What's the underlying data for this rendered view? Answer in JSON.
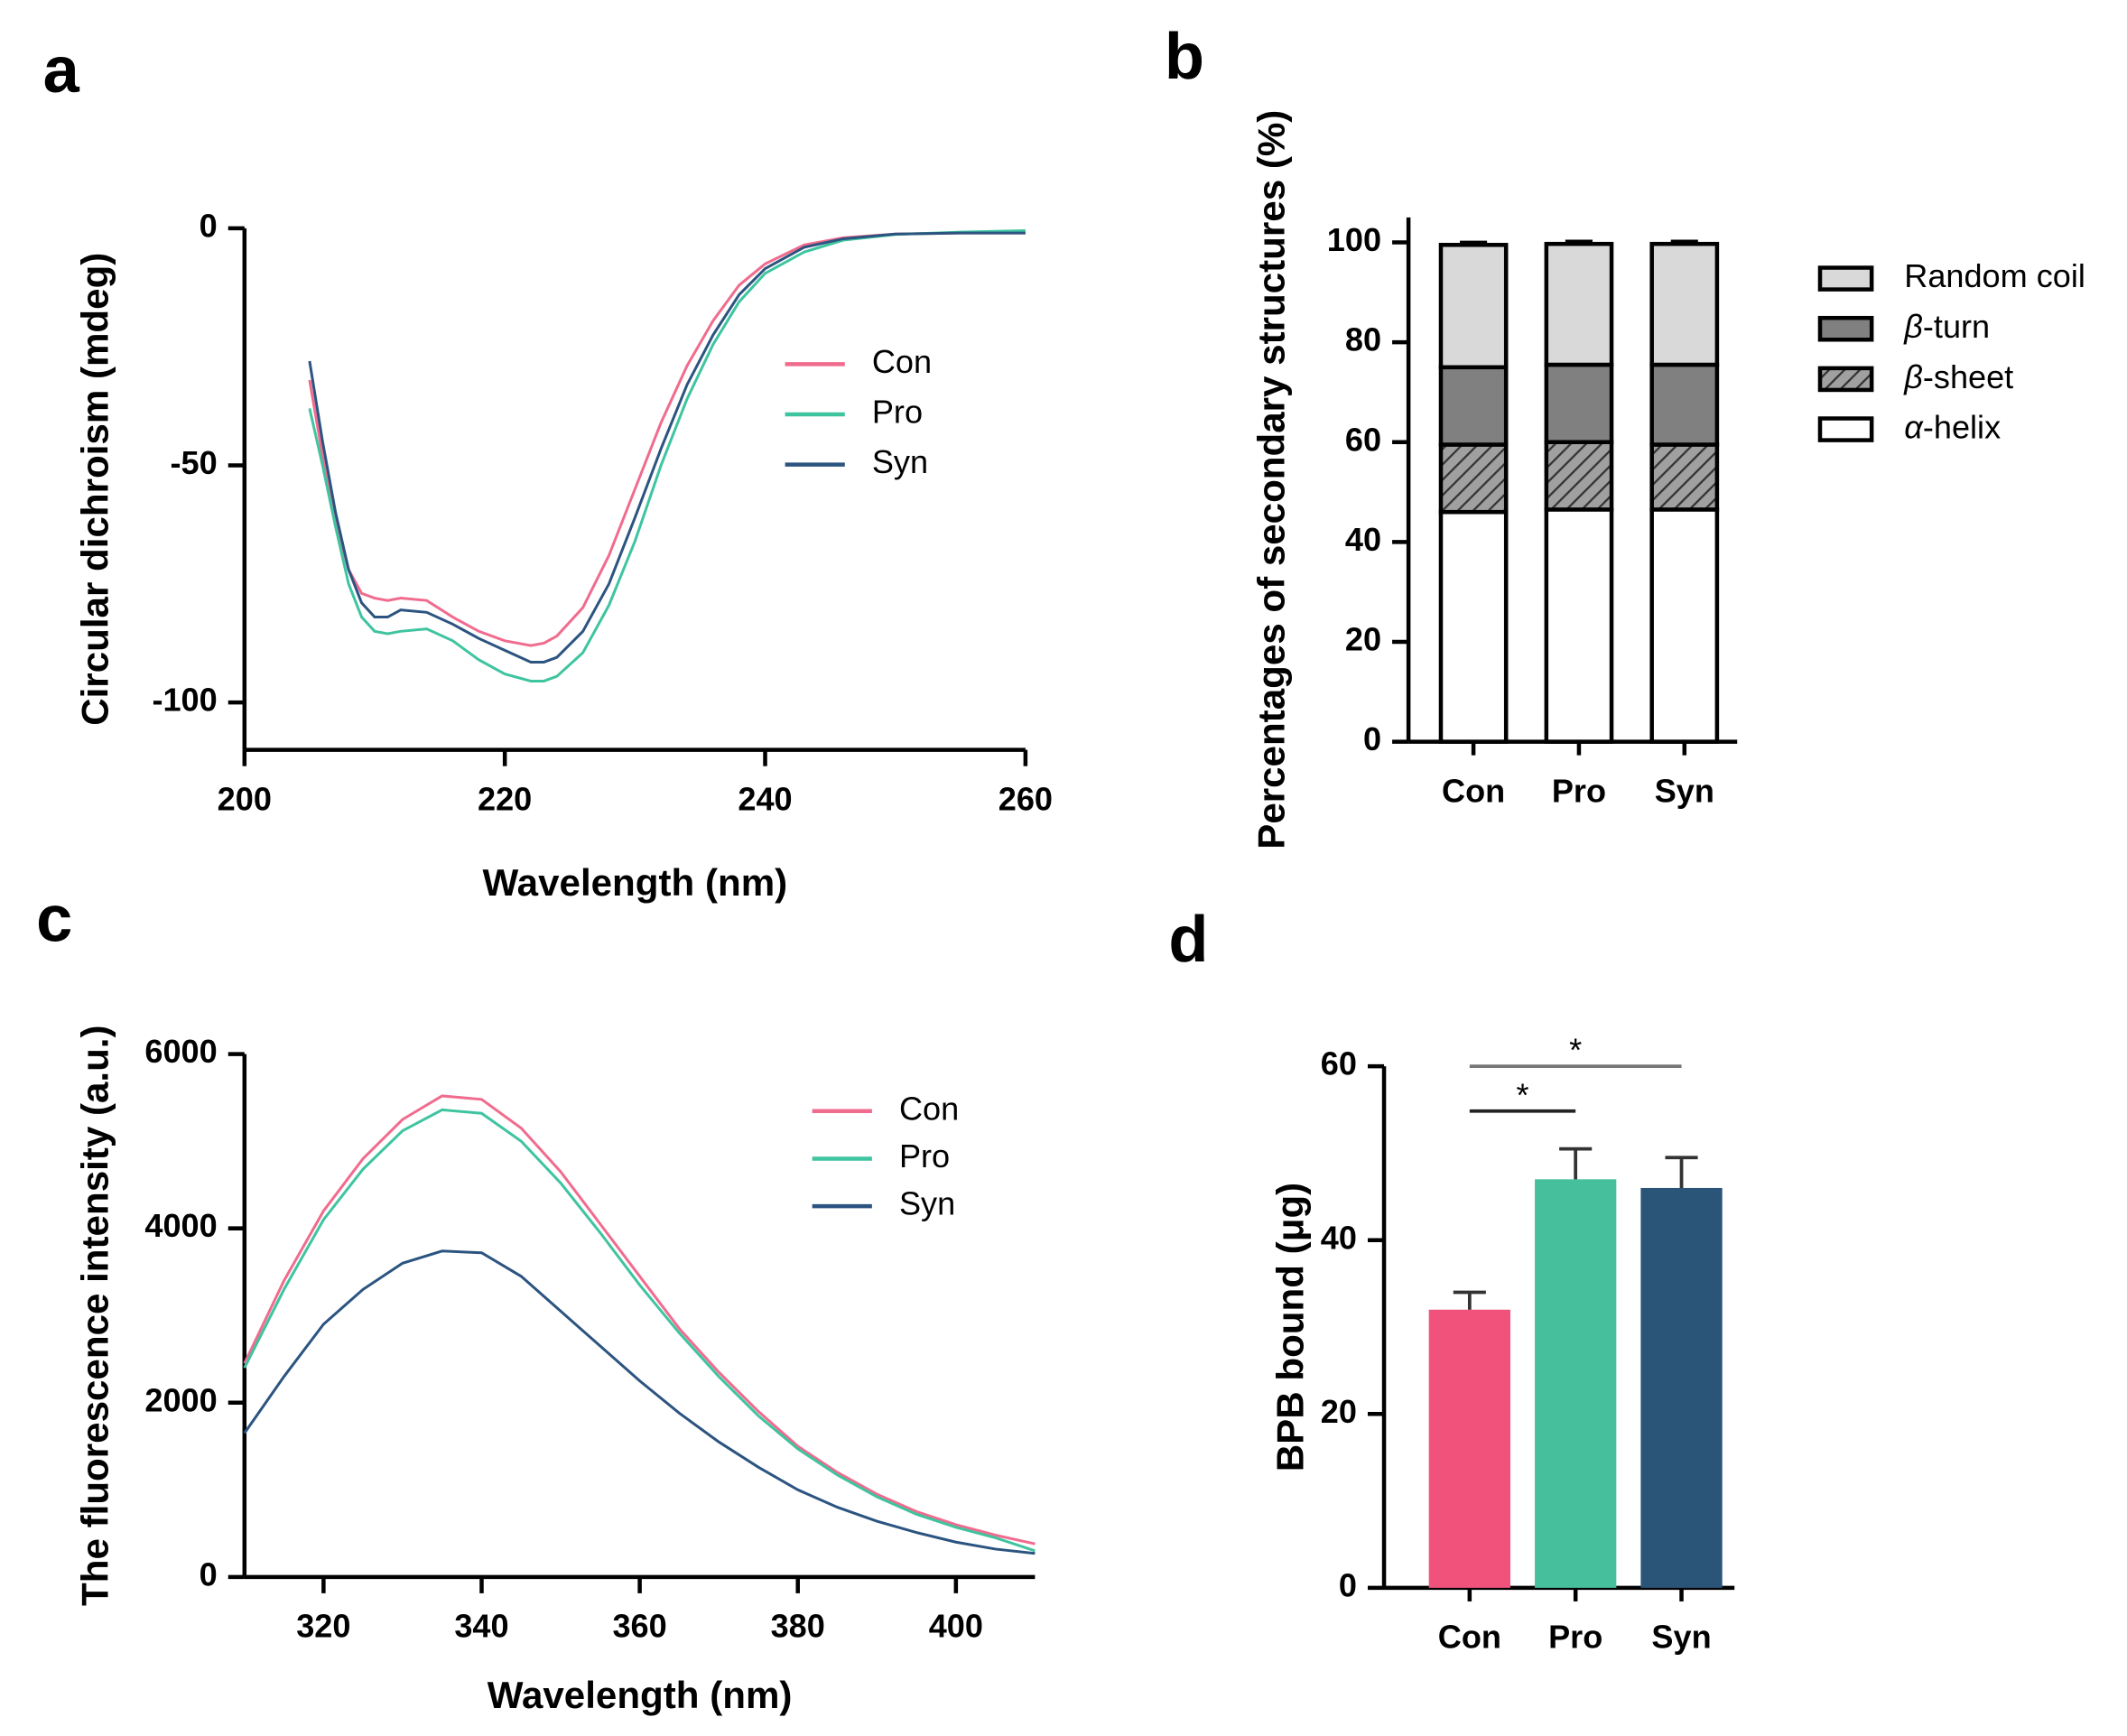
{
  "chart_data": [
    {
      "panel": "a",
      "type": "line",
      "xlabel": "Wavelength (nm)",
      "ylabel": "Circular dichroism (mdeg)",
      "x": [
        205,
        206,
        207,
        208,
        209,
        210,
        211,
        212,
        214,
        216,
        218,
        220,
        222,
        223,
        224,
        226,
        228,
        230,
        232,
        234,
        236,
        238,
        240,
        243,
        246,
        250,
        255,
        260
      ],
      "xlim": [
        200,
        260
      ],
      "xticks": [
        200,
        220,
        240,
        260
      ],
      "ylim": [
        -110,
        0
      ],
      "yticks": [
        0,
        -50,
        -100
      ],
      "legend": "right",
      "series": [
        {
          "name": "Con",
          "color": "#f06c8e",
          "values": [
            -32,
            -48,
            -62,
            -72,
            -77,
            -78,
            -78.5,
            -78,
            -78.5,
            -82,
            -85,
            -87,
            -88,
            -87.5,
            -86,
            -80,
            -69,
            -55,
            -41,
            -29,
            -19.5,
            -12,
            -7.5,
            -3.5,
            -2,
            -1.2,
            -1,
            -1
          ]
        },
        {
          "name": "Pro",
          "color": "#3fc4a0",
          "values": [
            -38,
            -50,
            -63,
            -75,
            -82,
            -85,
            -85.5,
            -85,
            -84.5,
            -87,
            -91,
            -94,
            -95.5,
            -95.5,
            -94.5,
            -89.5,
            -79.5,
            -66,
            -50,
            -36,
            -24.5,
            -15.5,
            -9.5,
            -5,
            -2.5,
            -1.3,
            -0.8,
            -0.5
          ]
        },
        {
          "name": "Syn",
          "color": "#2c5480",
          "values": [
            -28,
            -45,
            -60,
            -72,
            -79,
            -82,
            -82,
            -80.5,
            -81,
            -83.5,
            -86.5,
            -89,
            -91.5,
            -91.5,
            -90.5,
            -85,
            -75,
            -61,
            -46.5,
            -33,
            -22.5,
            -14,
            -8.5,
            -4,
            -2.2,
            -1.2,
            -1,
            -1
          ]
        }
      ]
    },
    {
      "panel": "b",
      "type": "stacked_bar",
      "ylabel": "Percentages of secondary structures (%)",
      "categories": [
        "Con",
        "Pro",
        "Syn"
      ],
      "ylim": [
        0,
        105
      ],
      "yticks": [
        0,
        20,
        40,
        60,
        80,
        100
      ],
      "legend": "right",
      "series": [
        {
          "name": "α-helix",
          "color": "#ffffff",
          "values": [
            46,
            46.5,
            46.5
          ],
          "errors": [
            0.5,
            0.5,
            0.5
          ]
        },
        {
          "name": "β-sheet",
          "color": "#9a9a9a",
          "hatch": true,
          "values": [
            13.5,
            13.5,
            13
          ],
          "errors": [
            0.5,
            0.5,
            0.5
          ]
        },
        {
          "name": "β-turn",
          "color": "#808080",
          "values": [
            15.5,
            15.5,
            16
          ],
          "errors": [
            0.5,
            0.5,
            0.5
          ]
        },
        {
          "name": "Random coil",
          "color": "#d9d9d9",
          "values": [
            24.5,
            24.2,
            24.2
          ],
          "errors": [
            0.5,
            0.5,
            0.5
          ]
        }
      ]
    },
    {
      "panel": "c",
      "type": "line",
      "xlabel": "Wavelength (nm)",
      "ylabel": "The fluorescence intensity (a.u.)",
      "x": [
        310,
        315,
        320,
        325,
        330,
        335,
        340,
        345,
        350,
        355,
        360,
        365,
        370,
        375,
        380,
        385,
        390,
        395,
        400,
        405,
        410
      ],
      "xlim": [
        310,
        410
      ],
      "xticks": [
        320,
        340,
        360,
        380,
        400
      ],
      "ylim": [
        0,
        6000
      ],
      "yticks": [
        0,
        2000,
        4000,
        6000
      ],
      "legend": "right",
      "series": [
        {
          "name": "Con",
          "color": "#f06c8e",
          "values": [
            2450,
            3400,
            4200,
            4800,
            5250,
            5520,
            5480,
            5150,
            4650,
            4050,
            3450,
            2850,
            2350,
            1900,
            1500,
            1200,
            950,
            750,
            600,
            480,
            380
          ]
        },
        {
          "name": "Pro",
          "color": "#3fc4a0",
          "values": [
            2400,
            3300,
            4100,
            4680,
            5120,
            5360,
            5320,
            5000,
            4520,
            3950,
            3350,
            2800,
            2300,
            1850,
            1470,
            1170,
            920,
            720,
            570,
            450,
            300
          ]
        },
        {
          "name": "Syn",
          "color": "#2c5480",
          "values": [
            1650,
            2300,
            2900,
            3300,
            3600,
            3740,
            3720,
            3450,
            3050,
            2650,
            2250,
            1880,
            1550,
            1260,
            1000,
            800,
            640,
            510,
            400,
            320,
            270
          ]
        }
      ]
    },
    {
      "panel": "d",
      "type": "bar",
      "ylabel": "BPB bound (μg)",
      "categories": [
        "Con",
        "Pro",
        "Syn"
      ],
      "values": [
        32,
        47,
        46
      ],
      "errors": [
        2,
        3.5,
        3.5
      ],
      "colors": [
        "#f0527b",
        "#45bf9c",
        "#2b5479"
      ],
      "ylim": [
        0,
        60
      ],
      "yticks": [
        0,
        20,
        40,
        60
      ],
      "annotations": [
        {
          "text": "*",
          "from": 0,
          "to": 1
        },
        {
          "text": "*",
          "from": 0,
          "to": 2
        }
      ]
    }
  ]
}
